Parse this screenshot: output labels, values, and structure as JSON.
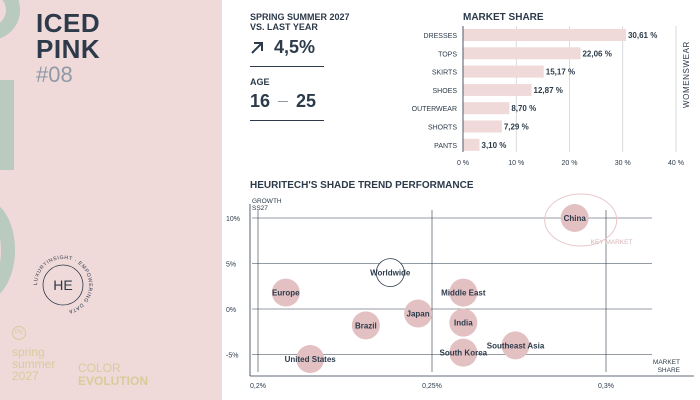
{
  "header": {
    "title_line1": "ICED",
    "title_line2": "PINK",
    "code": "#08"
  },
  "stats": {
    "season_label_line1": "SPRING SUMMER 2027",
    "season_label_line2": "VS. LAST YEAR",
    "growth_value": "4,5%",
    "age_label": "AGE",
    "age_min": "16",
    "age_max": "25"
  },
  "footer": {
    "logo_mark": "HE",
    "logo_ring_text": "LUXURYINSIGHT · EMPOWERING DATA",
    "pv_badge": "PV",
    "season_line1": "spring",
    "season_line2": "summer",
    "season_line3": "2027",
    "color_label": "COLOR",
    "evolution_label": "EVOLUTION"
  },
  "colors": {
    "navy": "#2c3a4a",
    "pink_bar": "#efd9d9",
    "bubble": "#e3c1c3",
    "panel": "#efd9d9",
    "sage": "#b9cabf",
    "gold": "#d8cc9b"
  },
  "chart_data": [
    {
      "type": "bar",
      "orientation": "horizontal",
      "title": "MARKET SHARE",
      "side_label": "WOMENSWEAR",
      "categories": [
        "DRESSES",
        "TOPS",
        "SKIRTS",
        "SHOES",
        "OUTERWEAR",
        "SHORTS",
        "PANTS"
      ],
      "values": [
        30.61,
        22.06,
        15.17,
        12.87,
        8.7,
        7.29,
        3.1
      ],
      "value_labels": [
        "30,61 %",
        "22,06 %",
        "15,17 %",
        "12,87 %",
        "8,70 %",
        "7,29 %",
        "3,10 %"
      ],
      "xlim": [
        0,
        40
      ],
      "xticks": [
        0,
        10,
        20,
        30,
        40
      ],
      "xtick_labels": [
        "0 %",
        "10 %",
        "20 %",
        "30 %",
        "40 %"
      ],
      "grid": true
    },
    {
      "type": "scatter",
      "title": "HEURITECH'S SHADE TREND PERFORMANCE",
      "ylabel_line1": "GROWTH",
      "ylabel_line2": "SS27",
      "xlabel_line1": "MARKET",
      "xlabel_line2": "SHARE",
      "xlim": [
        0.2,
        0.325
      ],
      "ylim": [
        -7,
        12
      ],
      "xticks": [
        0.2,
        0.25,
        0.3
      ],
      "xtick_labels": [
        "0,2%",
        "0,25%",
        "0,3%"
      ],
      "yticks": [
        10,
        5,
        0,
        -5
      ],
      "ytick_labels": [
        "10%",
        "5%",
        "0%",
        "-5%"
      ],
      "key_market_label": "KEY MARKET",
      "key_market": "China",
      "highlighted": "Worldwide",
      "points": [
        {
          "label": "China",
          "x": 0.291,
          "y": 10
        },
        {
          "label": "Worldwide",
          "x": 0.238,
          "y": 4
        },
        {
          "label": "Europe",
          "x": 0.208,
          "y": 1.8
        },
        {
          "label": "Middle East",
          "x": 0.259,
          "y": 1.8
        },
        {
          "label": "Japan",
          "x": 0.246,
          "y": -0.5
        },
        {
          "label": "Brazil",
          "x": 0.231,
          "y": -1.8
        },
        {
          "label": "India",
          "x": 0.259,
          "y": -1.5
        },
        {
          "label": "Southeast Asia",
          "x": 0.274,
          "y": -4
        },
        {
          "label": "South Korea",
          "x": 0.259,
          "y": -4.8
        },
        {
          "label": "United States",
          "x": 0.215,
          "y": -5.5
        }
      ]
    }
  ]
}
